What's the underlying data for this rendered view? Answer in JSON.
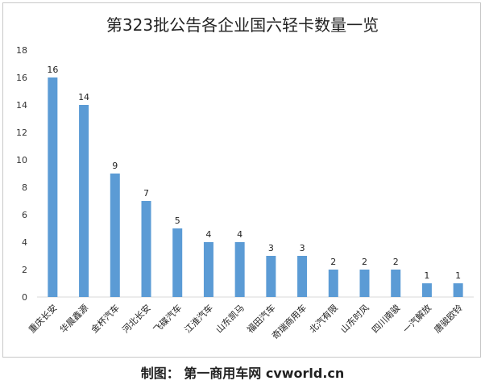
{
  "chart_data": {
    "type": "bar",
    "title": "第323批公告各企业国六轻卡数量一览",
    "categories": [
      "重庆长安",
      "华晨鑫源",
      "金杯汽车",
      "河北长安",
      "飞碟汽车",
      "江淮汽车",
      "山东凯马",
      "福田汽车",
      "奇瑞商用车",
      "北汽有限",
      "山东时风",
      "四川南骏",
      "一汽解放",
      "唐骏欧铃"
    ],
    "values": [
      16,
      14,
      9,
      7,
      5,
      4,
      4,
      3,
      3,
      2,
      2,
      2,
      1,
      1
    ],
    "yticks": [
      0,
      2,
      4,
      6,
      8,
      10,
      12,
      14,
      16,
      18
    ],
    "ylim": [
      0,
      18
    ],
    "xlabel": "",
    "ylabel": "",
    "grid": false,
    "legend": "none",
    "bar_color": "#5b9bd5"
  },
  "caption": "制图： 第一商用车网 cvworld.cn"
}
